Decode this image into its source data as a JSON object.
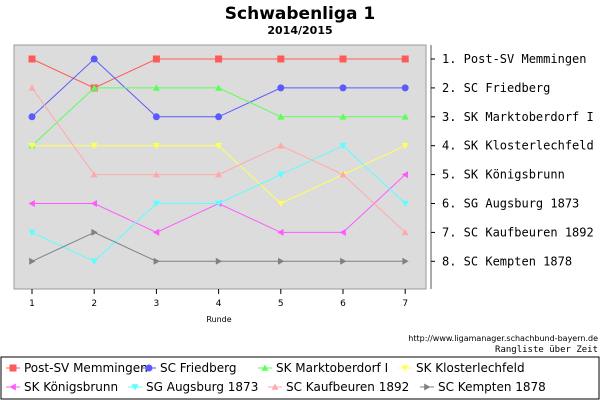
{
  "header": {
    "title": "Schwabenliga 1",
    "subtitle": "2014/2015"
  },
  "footer": {
    "url": "http://www.ligamanager.schachbund-bayern.de",
    "caption": "Rangliste über Zeit"
  },
  "chart_data": {
    "type": "line",
    "xlabel": "Runde",
    "x": [
      1,
      2,
      3,
      4,
      5,
      6,
      7
    ],
    "xlim": [
      0.8,
      7.3
    ],
    "ylim": [
      0.5,
      8.5
    ],
    "y_inverted": true,
    "grid": false,
    "legend": "bottom",
    "right_labels": [
      "1. Post-SV Memmingen",
      "2. SC Friedberg",
      "3. SK Marktoberdorf I",
      "4. SK Klosterlechfeld",
      "5. SK Königsbrunn",
      "6. SG Augsburg 1873",
      "7. SC Kaufbeuren 1892",
      "8. SC Kempten 1878"
    ],
    "series": [
      {
        "name": "Post-SV Memmingen",
        "color": "#ff5a5a",
        "marker": "square",
        "values": [
          1,
          2,
          1,
          1,
          1,
          1,
          1
        ]
      },
      {
        "name": "SC Friedberg",
        "color": "#5a5aff",
        "marker": "circle",
        "values": [
          3,
          1,
          3,
          3,
          2,
          2,
          2
        ]
      },
      {
        "name": "SK Marktoberdorf I",
        "color": "#5aff5a",
        "marker": "triangle-up",
        "values": [
          4,
          2,
          2,
          2,
          3,
          3,
          3
        ]
      },
      {
        "name": "SK Klosterlechfeld",
        "color": "#ffff5a",
        "marker": "triangle-down",
        "values": [
          4,
          4,
          4,
          4,
          6,
          5,
          4
        ]
      },
      {
        "name": "SK Königsbrunn",
        "color": "#ff5aff",
        "marker": "triangle-left",
        "values": [
          6,
          6,
          7,
          6,
          7,
          7,
          5
        ]
      },
      {
        "name": "SG Augsburg 1873",
        "color": "#5affff",
        "marker": "triangle-down",
        "values": [
          7,
          8,
          6,
          6,
          5,
          4,
          6
        ]
      },
      {
        "name": "SC Kaufbeuren 1892",
        "color": "#ffaaaa",
        "marker": "triangle-up",
        "values": [
          2,
          5,
          5,
          5,
          4,
          5,
          7
        ]
      },
      {
        "name": "SC Kempten 1878",
        "color": "#808080",
        "marker": "triangle-right",
        "values": [
          8,
          7,
          8,
          8,
          8,
          8,
          8
        ]
      }
    ]
  }
}
